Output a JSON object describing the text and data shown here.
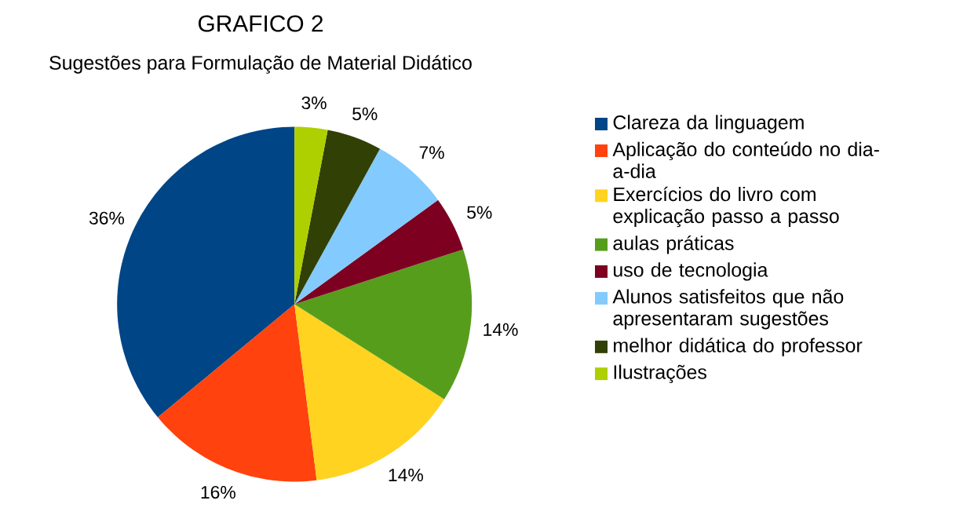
{
  "chart_data": {
    "type": "pie",
    "title": "GRAFICO 2",
    "subtitle": "Sugestões para Formulação de Material Didático",
    "categories": [
      "Clareza da linguagem",
      "Aplicação do conteúdo no dia-a-dia",
      "Exercícios do livro com explicação passo a passo",
      "aulas práticas",
      "uso de tecnologia",
      "Alunos satisfeitos que não apresentaram sugestões",
      "melhor didática do professor",
      "Ilustrações"
    ],
    "values": [
      36,
      16,
      14,
      14,
      5,
      7,
      5,
      3
    ],
    "value_labels": [
      "36%",
      "16%",
      "14%",
      "14%",
      "5%",
      "7%",
      "5%",
      "3%"
    ],
    "colors": [
      "#004586",
      "#ff420e",
      "#ffd320",
      "#579d1c",
      "#7e0021",
      "#83caff",
      "#314004",
      "#aecf00"
    ],
    "legend": "right"
  }
}
